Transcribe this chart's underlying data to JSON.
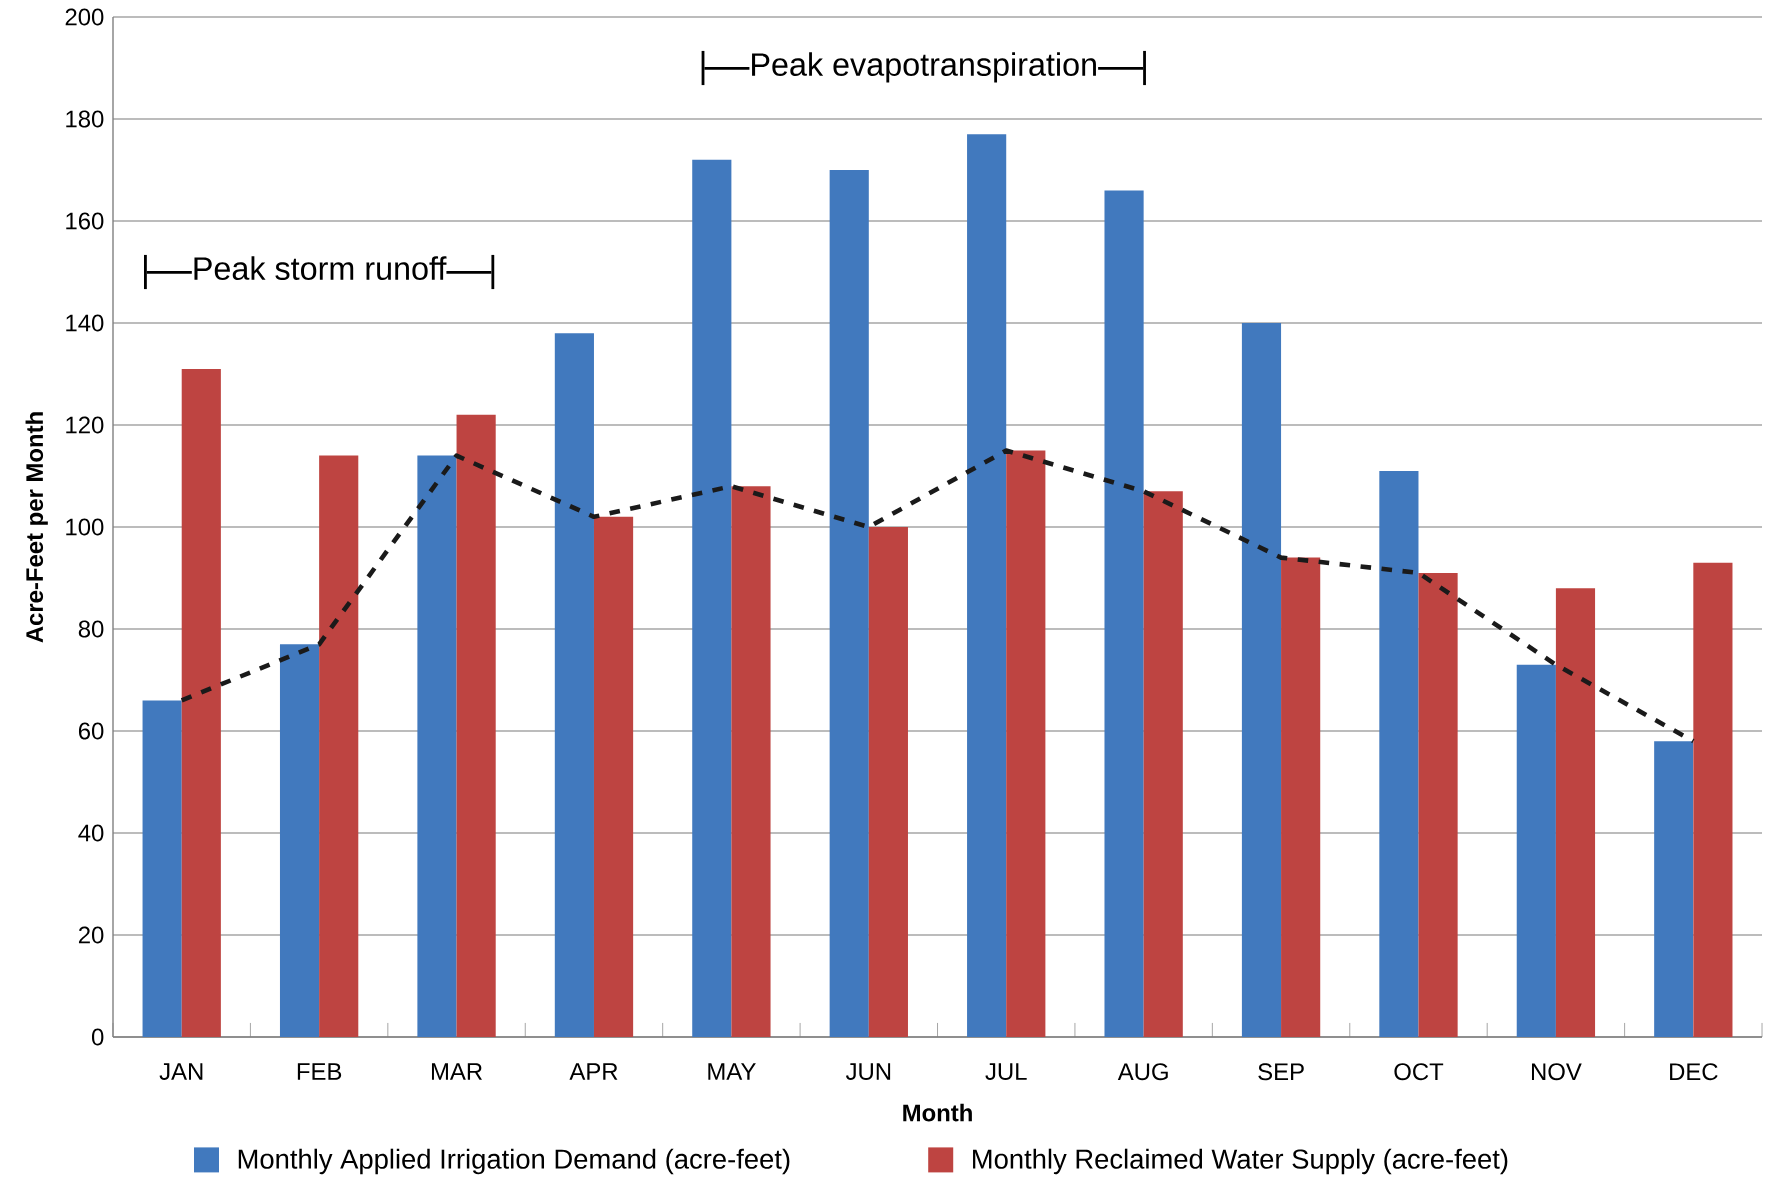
{
  "chart_data": {
    "type": "bar",
    "xlabel": "Month",
    "ylabel": "Acre-Feet per Month",
    "categories": [
      "JAN",
      "FEB",
      "MAR",
      "APR",
      "MAY",
      "JUN",
      "JUL",
      "AUG",
      "SEP",
      "OCT",
      "NOV",
      "DEC"
    ],
    "series": [
      {
        "name": "Monthly Applied Irrigation Demand (acre-feet)",
        "color": "#4179be",
        "values": [
          66,
          77,
          114,
          138,
          172,
          170,
          177,
          166,
          140,
          111,
          73,
          58
        ]
      },
      {
        "name": "Monthly Reclaimed Water Supply (acre-feet)",
        "color": "#be4441",
        "values": [
          131,
          114,
          122,
          102,
          108,
          100,
          115,
          107,
          94,
          91,
          88,
          93
        ]
      },
      {
        "type": "line",
        "color": "#1a1a1a",
        "line_style": "dashed",
        "values": [
          66,
          77,
          114,
          102,
          108,
          100,
          115,
          107,
          94,
          91,
          73,
          58
        ]
      }
    ],
    "ylim": [
      0,
      200
    ],
    "yticks": [
      0,
      20,
      40,
      60,
      80,
      100,
      120,
      140,
      160,
      180,
      200
    ],
    "grid": "y",
    "legend": "bottom",
    "annotations": [
      "Peak storm runoff",
      "Peak evapotranspiration"
    ]
  }
}
